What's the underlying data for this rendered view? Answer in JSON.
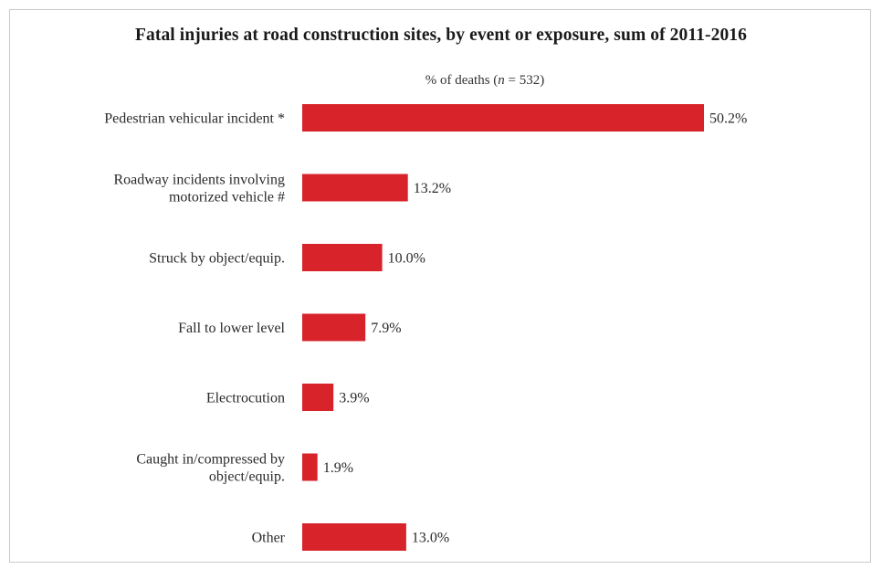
{
  "chart_data": {
    "type": "bar",
    "orientation": "horizontal",
    "title": "Fatal injuries at road construction sites, by event or exposure, sum of 2011-2016",
    "subtitle": {
      "prefix": "% of deaths (",
      "n_symbol": "n",
      "suffix": " = 532)"
    },
    "categories": [
      [
        "Pedestrian vehicular incident *"
      ],
      [
        "Roadway incidents involving",
        "motorized vehicle #"
      ],
      [
        "Struck by object/equip."
      ],
      [
        "Fall to lower level"
      ],
      [
        "Electrocution"
      ],
      [
        "Caught in/compressed by",
        "object/equip."
      ],
      [
        "Other"
      ]
    ],
    "values": [
      50.2,
      13.2,
      10.0,
      7.9,
      3.9,
      1.9,
      13.0
    ],
    "value_labels": [
      "50.2%",
      "13.2%",
      "10.0%",
      "7.9%",
      "3.9%",
      "1.9%",
      "13.0%"
    ],
    "unit": "%",
    "xlim": [
      0,
      50.2
    ],
    "bar_color": "#d8232a",
    "grid": false,
    "legend": "none"
  }
}
